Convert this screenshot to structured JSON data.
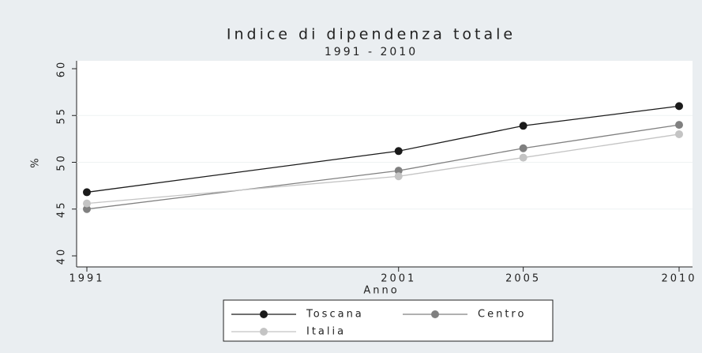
{
  "chart_data": {
    "type": "line",
    "title": "Indice di dipendenza totale",
    "subtitle": "1991 - 2010",
    "x_label": "Anno",
    "y_label": "%",
    "x": [
      1991,
      2001,
      2005,
      2010
    ],
    "series": [
      {
        "name": "Toscana",
        "color": "#1a1a1a",
        "values": [
          46.8,
          51.2,
          53.9,
          56.0
        ]
      },
      {
        "name": "Centro",
        "color": "#808080",
        "values": [
          45.0,
          49.1,
          51.5,
          54.0
        ]
      },
      {
        "name": "Italia",
        "color": "#c4c4c4",
        "values": [
          45.6,
          48.5,
          50.5,
          53.0
        ]
      }
    ],
    "xlim": [
      1991,
      2010
    ],
    "xticks": [
      1991,
      2001,
      2005,
      2010
    ],
    "ylim": [
      40,
      60
    ],
    "yticks": [
      40,
      45,
      50,
      55,
      60
    ],
    "grid": true
  }
}
